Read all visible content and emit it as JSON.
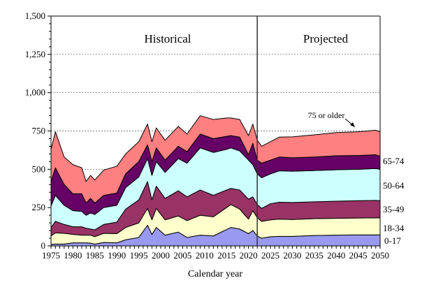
{
  "chart_data": {
    "type": "area",
    "stacked": true,
    "xlabel": "Calendar year",
    "ylabel": "",
    "xlim": [
      1975,
      2050
    ],
    "ylim": [
      0,
      1500
    ],
    "y_ticks": [
      "0",
      "250",
      "500",
      "750",
      "1,000",
      "1,250",
      "1,500"
    ],
    "x_ticks": [
      "1975",
      "1980",
      "1985",
      "1990",
      "1995",
      "2000",
      "2005",
      "2010",
      "2015",
      "2020",
      "2025",
      "2030",
      "2035",
      "2040",
      "2045",
      "2050"
    ],
    "grid": "horizontal dashed",
    "divider_year": 2022,
    "region_labels": [
      "Historical",
      "Projected"
    ],
    "annotation": "75 or older",
    "x": [
      1975,
      1976,
      1978,
      1980,
      1982,
      1983,
      1984,
      1985,
      1987,
      1990,
      1992,
      1995,
      1997,
      1998,
      1999,
      2001,
      2004,
      2006,
      2009,
      2012,
      2015,
      2016,
      2018,
      2020,
      2021,
      2022,
      2023,
      2025,
      2027,
      2030,
      2035,
      2040,
      2045,
      2049,
      2050
    ],
    "series": [
      {
        "name": "0-17",
        "color": "#9999f2",
        "values": [
          10,
          12,
          12,
          20,
          20,
          20,
          18,
          12,
          22,
          20,
          40,
          55,
          135,
          75,
          120,
          70,
          90,
          55,
          70,
          65,
          107,
          120,
          110,
          80,
          100,
          65,
          50,
          60,
          62,
          62,
          68,
          70,
          72,
          72,
          72
        ]
      },
      {
        "name": "18-34",
        "color": "#ffffcc",
        "values": [
          55,
          73,
          70,
          55,
          50,
          50,
          52,
          48,
          60,
          60,
          80,
          95,
          110,
          95,
          125,
          100,
          105,
          110,
          130,
          125,
          143,
          150,
          130,
          95,
          130,
          120,
          110,
          110,
          113,
          110,
          110,
          110,
          110,
          111,
          111
        ]
      },
      {
        "name": "35-49",
        "color": "#993366",
        "values": [
          55,
          75,
          58,
          50,
          55,
          45,
          40,
          45,
          58,
          75,
          120,
          150,
          175,
          130,
          145,
          140,
          165,
          155,
          165,
          140,
          115,
          105,
          125,
          130,
          90,
          85,
          85,
          105,
          110,
          111,
          110,
          112,
          113,
          114,
          112
        ]
      },
      {
        "name": "50-64",
        "color": "#ccffff",
        "values": [
          140,
          170,
          125,
          105,
          100,
          85,
          105,
          100,
          110,
          110,
          140,
          150,
          150,
          160,
          160,
          170,
          210,
          220,
          275,
          280,
          265,
          265,
          255,
          255,
          210,
          200,
          200,
          195,
          205,
          204,
          204,
          205,
          205,
          208,
          205
        ]
      },
      {
        "name": "65-74",
        "color": "#660066",
        "values": [
          160,
          180,
          135,
          110,
          115,
          80,
          95,
          75,
          80,
          80,
          90,
          100,
          90,
          90,
          90,
          80,
          80,
          75,
          90,
          90,
          85,
          80,
          90,
          35,
          140,
          90,
          95,
          90,
          90,
          88,
          88,
          91,
          90,
          90,
          85
        ]
      },
      {
        "name": "75 or older",
        "color": "#ff8080",
        "values": [
          210,
          235,
          180,
          190,
          170,
          140,
          150,
          150,
          165,
          175,
          130,
          130,
          135,
          130,
          130,
          130,
          130,
          115,
          120,
          125,
          120,
          115,
          115,
          125,
          125,
          130,
          110,
          120,
          130,
          137,
          145,
          152,
          155,
          160,
          160
        ]
      }
    ],
    "series_labels": [
      "65-74",
      "50-64",
      "35-49",
      "18-34",
      "0-17"
    ]
  }
}
